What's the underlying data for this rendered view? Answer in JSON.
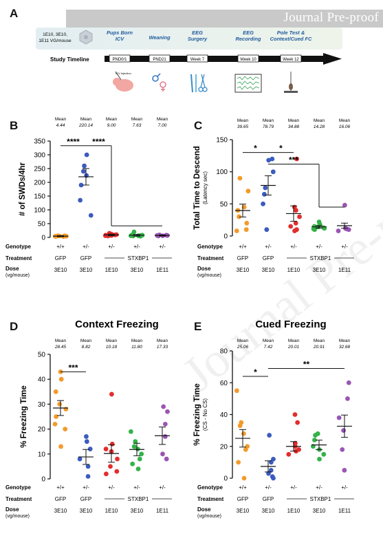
{
  "header": {
    "banner_text": "Journal Pre-proof"
  },
  "watermark_text": "Journal Pre-proof",
  "panel_A": {
    "letter": "A",
    "dose_note_lines": [
      "1E10, 3E10,",
      "1E11 VG/mouse"
    ],
    "injector_icon": "vector-icon",
    "timeline_label": "Study Timeline",
    "events": [
      {
        "title_lines": [
          "Pups Born",
          "ICV"
        ],
        "tick": "PND0/1",
        "icon": "neonatal-pup-icon",
        "icon_caption": "ICV Injection"
      },
      {
        "title_lines": [
          "Weaning"
        ],
        "tick": "PND21",
        "icon": "male-female-icon"
      },
      {
        "title_lines": [
          "EEG",
          "Surgery"
        ],
        "tick": "Week 7",
        "icon": "surgical-tools-icon"
      },
      {
        "title_lines": [
          "EEG",
          "Recording"
        ],
        "tick": "Week 10",
        "icon": "eeg-trace-icon"
      },
      {
        "title_lines": [
          "Pole Test &",
          "Context/Cued FC"
        ],
        "tick": "Week 12",
        "icon": "pole-test-icon"
      }
    ]
  },
  "row_labels": {
    "genotype": "Genotype",
    "treatment": "Treatment",
    "dose_line1": "Dose",
    "dose_line2": "(vg/mouse)",
    "mean": "Mean"
  },
  "groups": {
    "genotypes": [
      "+/+",
      "+/-",
      "+/-",
      "+/-",
      "+/-"
    ],
    "treatments": [
      "GFP",
      "GFP"
    ],
    "stxbp1_label": "STXBP1",
    "doses": [
      "3E10",
      "3E10",
      "1E10",
      "3E10",
      "1E11"
    ],
    "colors": [
      "#f39a2b",
      "#3b5bbf",
      "#e32d2d",
      "#33b24a",
      "#9a55b3"
    ]
  },
  "chart_data": [
    {
      "panel": "B",
      "type": "scatter",
      "title": "",
      "ylabel": "# of SWDs/4hr",
      "ylabel_sub": "",
      "ylim": [
        0,
        350
      ],
      "yticks": [
        0,
        50,
        100,
        150,
        200,
        250,
        300,
        350
      ],
      "means": [
        "4.44",
        "220.14",
        "9.00",
        "7.63",
        "7.00"
      ],
      "groups": [
        {
          "mean": 4.44,
          "sem": 2,
          "points": [
            3,
            4,
            5,
            6,
            4,
            5,
            3,
            4,
            6
          ]
        },
        {
          "mean": 220.14,
          "sem": 30,
          "points": [
            300,
            260,
            240,
            225,
            190,
            135,
            80
          ]
        },
        {
          "mean": 9.0,
          "sem": 3,
          "points": [
            12,
            15,
            10,
            8,
            9,
            6,
            11,
            5,
            7
          ]
        },
        {
          "mean": 7.63,
          "sem": 3,
          "points": [
            20,
            8,
            6,
            9,
            5,
            7,
            4,
            6
          ]
        },
        {
          "mean": 7.0,
          "sem": 2,
          "points": [
            8,
            6,
            7,
            9,
            5,
            7
          ]
        }
      ],
      "significance": [
        "****",
        "****"
      ]
    },
    {
      "panel": "C",
      "type": "scatter",
      "title": "",
      "ylabel": "Total Time to Descend",
      "ylabel_sub": "(Latency sec)",
      "ylim": [
        0,
        150
      ],
      "yticks": [
        0,
        50,
        100,
        150
      ],
      "means": [
        "39.65",
        "78.79",
        "34.88",
        "14.28",
        "16.06"
      ],
      "groups": [
        {
          "mean": 39.65,
          "sem": 10,
          "points": [
            90,
            70,
            45,
            40,
            30,
            20,
            10,
            8
          ]
        },
        {
          "mean": 78.79,
          "sem": 15,
          "points": [
            120,
            118,
            100,
            75,
            65,
            50,
            10
          ]
        },
        {
          "mean": 34.88,
          "sem": 12,
          "points": [
            120,
            45,
            40,
            30,
            20,
            15,
            10,
            8
          ]
        },
        {
          "mean": 14.28,
          "sem": 2,
          "points": [
            22,
            18,
            15,
            14,
            12,
            10,
            11,
            13
          ]
        },
        {
          "mean": 16.06,
          "sem": 4,
          "points": [
            48,
            12,
            10,
            8,
            11
          ]
        }
      ],
      "significance": [
        "*",
        "*",
        "***"
      ]
    },
    {
      "panel": "D",
      "type": "scatter",
      "title": "Context Freezing",
      "ylabel": "% Freezing Time",
      "ylabel_sub": "",
      "ylim": [
        0,
        50
      ],
      "yticks": [
        0,
        10,
        20,
        30,
        40,
        50
      ],
      "means": [
        "28.45",
        "8.82",
        "10.18",
        "11.80",
        "17.33"
      ],
      "groups": [
        {
          "mean": 28.45,
          "sem": 3,
          "points": [
            43,
            40,
            35,
            30,
            28,
            25,
            22,
            20,
            13
          ]
        },
        {
          "mean": 8.82,
          "sem": 3,
          "points": [
            17,
            15,
            12,
            8,
            5,
            1
          ]
        },
        {
          "mean": 10.18,
          "sem": 3.5,
          "points": [
            34,
            14,
            12,
            11,
            8,
            5,
            3,
            2
          ]
        },
        {
          "mean": 11.8,
          "sem": 2.5,
          "points": [
            19,
            15,
            13,
            12,
            10,
            8,
            6,
            4
          ]
        },
        {
          "mean": 17.33,
          "sem": 3.5,
          "points": [
            29,
            27,
            22,
            17,
            10,
            8
          ]
        }
      ],
      "significance": [
        "***"
      ]
    },
    {
      "panel": "E",
      "type": "scatter",
      "title": "Cued Freezing",
      "ylabel": "% Freezing Time",
      "ylabel_sub": "(CS - No CS)",
      "ylim": [
        0,
        80
      ],
      "yticks": [
        0,
        20,
        40,
        60,
        80
      ],
      "means": [
        "25.06",
        "7.42",
        "20.01",
        "20.91",
        "32.68"
      ],
      "groups": [
        {
          "mean": 25.06,
          "sem": 5.5,
          "points": [
            55,
            35,
            33,
            28,
            20,
            18,
            10,
            0
          ]
        },
        {
          "mean": 7.42,
          "sem": 3.5,
          "points": [
            27,
            12,
            10,
            5,
            3,
            1,
            0
          ]
        },
        {
          "mean": 20.01,
          "sem": 3,
          "points": [
            40,
            35,
            22,
            20,
            18,
            17,
            15
          ]
        },
        {
          "mean": 20.91,
          "sem": 3,
          "points": [
            28,
            27,
            24,
            20,
            18,
            15,
            12
          ]
        },
        {
          "mean": 32.68,
          "sem": 7,
          "points": [
            60,
            50,
            38,
            30,
            18,
            5
          ]
        }
      ],
      "significance": [
        "*",
        "**"
      ]
    }
  ]
}
